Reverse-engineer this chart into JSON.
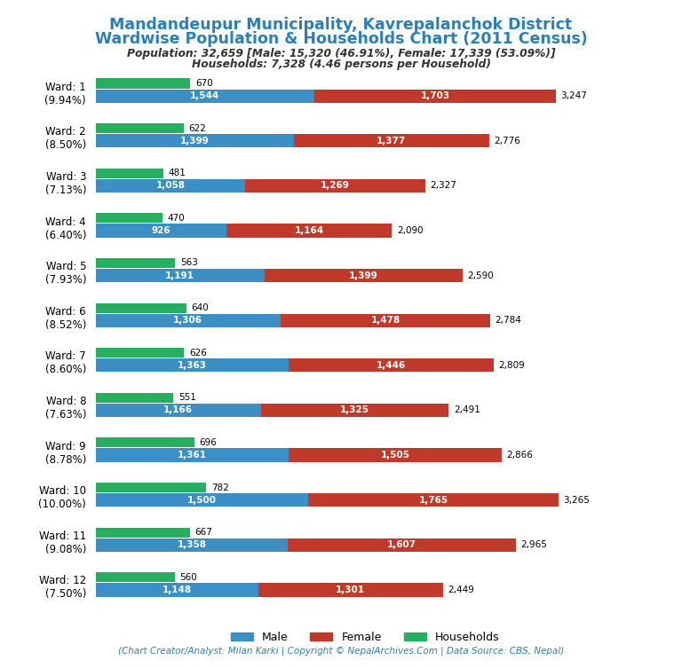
{
  "title_line1": "Mandandeupur Municipality, Kavrepalanchok District",
  "title_line2": "Wardwise Population & Households Chart (2011 Census)",
  "subtitle_line1": "Population: 32,659 [Male: 15,320 (46.91%), Female: 17,339 (53.09%)]",
  "subtitle_line2": "Households: 7,328 (4.46 persons per Household)",
  "footer": "(Chart Creator/Analyst: Milan Karki | Copyright © NepalArchives.Com | Data Source: CBS, Nepal)",
  "wards": [
    {
      "label": "Ward: 1\n(9.94%)",
      "households": 670,
      "male": 1544,
      "female": 1703,
      "total": 3247
    },
    {
      "label": "Ward: 2\n(8.50%)",
      "households": 622,
      "male": 1399,
      "female": 1377,
      "total": 2776
    },
    {
      "label": "Ward: 3\n(7.13%)",
      "households": 481,
      "male": 1058,
      "female": 1269,
      "total": 2327
    },
    {
      "label": "Ward: 4\n(6.40%)",
      "households": 470,
      "male": 926,
      "female": 1164,
      "total": 2090
    },
    {
      "label": "Ward: 5\n(7.93%)",
      "households": 563,
      "male": 1191,
      "female": 1399,
      "total": 2590
    },
    {
      "label": "Ward: 6\n(8.52%)",
      "households": 640,
      "male": 1306,
      "female": 1478,
      "total": 2784
    },
    {
      "label": "Ward: 7\n(8.60%)",
      "households": 626,
      "male": 1363,
      "female": 1446,
      "total": 2809
    },
    {
      "label": "Ward: 8\n(7.63%)",
      "households": 551,
      "male": 1166,
      "female": 1325,
      "total": 2491
    },
    {
      "label": "Ward: 9\n(8.78%)",
      "households": 696,
      "male": 1361,
      "female": 1505,
      "total": 2866
    },
    {
      "label": "Ward: 10\n(10.00%)",
      "households": 782,
      "male": 1500,
      "female": 1765,
      "total": 3265
    },
    {
      "label": "Ward: 11\n(9.08%)",
      "households": 667,
      "male": 1358,
      "female": 1607,
      "total": 2965
    },
    {
      "label": "Ward: 12\n(7.50%)",
      "households": 560,
      "male": 1148,
      "female": 1301,
      "total": 2449
    }
  ],
  "color_male": "#3b8fc4",
  "color_female": "#c0392b",
  "color_households": "#27ae60",
  "color_title": "#2980b9",
  "color_subtitle": "#333333",
  "color_footer": "#2980b9",
  "background_color": "#ffffff"
}
